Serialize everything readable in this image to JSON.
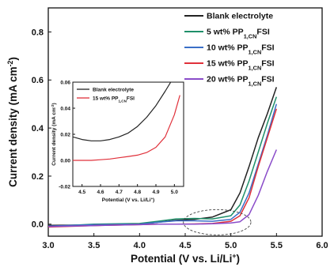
{
  "chart_data": [
    {
      "type": "line",
      "xlabel": "Potential (V vs. Li/Li",
      "xlabel_sup": "+",
      "xlabel_end": ")",
      "ylabel": "Current density (mA cm",
      "ylabel_sup": "-2",
      "ylabel_end": ")",
      "xlim": [
        3.0,
        6.0
      ],
      "ylim": [
        -0.05,
        0.9
      ],
      "xticks": [
        3.0,
        3.5,
        4.0,
        4.5,
        5.0,
        5.5,
        6.0
      ],
      "xtick_labels": [
        "3.0",
        "3.5",
        "4.0",
        "4.5",
        "5.0",
        "5.5",
        "6.0"
      ],
      "yticks": [
        0.0,
        0.2,
        0.4,
        0.6,
        0.8
      ],
      "ytick_labels": [
        "0.0",
        "0.2",
        "0.4",
        "0.6",
        "0.8"
      ],
      "legend_position": "top-right",
      "series": [
        {
          "name_main": "Blank electrolyte",
          "name_sub": "",
          "name_end": "",
          "color": "#222222",
          "x": [
            3.0,
            3.5,
            4.0,
            4.2,
            4.4,
            4.6,
            4.8,
            5.0,
            5.1,
            5.2,
            5.3,
            5.4,
            5.5
          ],
          "y": [
            -0.005,
            -0.003,
            0.0,
            0.008,
            0.016,
            0.02,
            0.03,
            0.06,
            0.13,
            0.24,
            0.36,
            0.46,
            0.57
          ]
        },
        {
          "name_main": "5 wt% PP",
          "name_sub": "1,CN",
          "name_end": "FSI",
          "color": "#1f8f6a",
          "x": [
            3.0,
            3.5,
            4.0,
            4.2,
            4.4,
            4.6,
            4.8,
            5.0,
            5.1,
            5.2,
            5.3,
            5.4,
            5.5
          ],
          "y": [
            -0.01,
            0.0,
            0.003,
            0.012,
            0.022,
            0.024,
            0.022,
            0.035,
            0.08,
            0.18,
            0.3,
            0.42,
            0.53
          ]
        },
        {
          "name_main": "10 wt% PP",
          "name_sub": "1,CN",
          "name_end": "FSI",
          "color": "#3a6fc7",
          "x": [
            3.0,
            3.5,
            4.0,
            4.2,
            4.4,
            4.6,
            4.8,
            5.0,
            5.1,
            5.2,
            5.3,
            5.4,
            5.5
          ],
          "y": [
            -0.008,
            -0.002,
            0.0,
            0.008,
            0.014,
            0.014,
            0.012,
            0.02,
            0.05,
            0.13,
            0.25,
            0.37,
            0.5
          ]
        },
        {
          "name_main": "15 wt% PP",
          "name_sub": "1,CN",
          "name_end": "FSI",
          "color": "#e0303a",
          "x": [
            3.0,
            3.5,
            4.0,
            4.2,
            4.4,
            4.6,
            4.8,
            5.0,
            5.1,
            5.2,
            5.3,
            5.4,
            5.5
          ],
          "y": [
            -0.012,
            -0.006,
            -0.002,
            0.0,
            0.0,
            0.001,
            0.003,
            0.012,
            0.035,
            0.11,
            0.24,
            0.36,
            0.48
          ]
        },
        {
          "name_main": "20 wt% PP",
          "name_sub": "1,CN",
          "name_end": "FSI",
          "color": "#8a4cc9",
          "x": [
            3.0,
            3.5,
            4.0,
            4.2,
            4.4,
            4.6,
            4.8,
            5.0,
            5.1,
            5.2,
            5.3,
            5.4,
            5.5
          ],
          "y": [
            -0.01,
            -0.006,
            -0.002,
            0.0,
            0.0,
            0.0,
            0.002,
            0.005,
            0.01,
            0.04,
            0.12,
            0.22,
            0.31
          ]
        }
      ]
    },
    {
      "type": "line",
      "xlabel": "Potential (V vs. Li/Li",
      "xlabel_sup": "+",
      "xlabel_end": ")",
      "ylabel": "Current density (mA cm",
      "ylabel_sup": "-2",
      "ylabel_end": ")",
      "xlim": [
        4.45,
        5.05
      ],
      "ylim": [
        -0.02,
        0.06
      ],
      "xticks": [
        4.5,
        4.6,
        4.7,
        4.8,
        4.9,
        5.0
      ],
      "xtick_labels": [
        "4.5",
        "4.6",
        "4.7",
        "4.8",
        "4.9",
        "5.0"
      ],
      "yticks": [
        -0.02,
        0.0,
        0.02,
        0.04,
        0.06
      ],
      "ytick_labels": [
        "-0.02",
        "0.00",
        "0.02",
        "0.04",
        "0.06"
      ],
      "legend_position": "top-left",
      "series": [
        {
          "name_main": "Blank electrolyte",
          "name_sub": "",
          "name_end": "",
          "color": "#222222",
          "x": [
            4.45,
            4.5,
            4.55,
            4.6,
            4.65,
            4.7,
            4.75,
            4.8,
            4.85,
            4.9,
            4.95,
            4.98
          ],
          "y": [
            0.018,
            0.016,
            0.015,
            0.015,
            0.016,
            0.018,
            0.021,
            0.026,
            0.033,
            0.042,
            0.053,
            0.06
          ]
        },
        {
          "name_main": "15 wt% PP",
          "name_sub": "1,CN",
          "name_end": "FSI",
          "color": "#e0303a",
          "x": [
            4.45,
            4.5,
            4.55,
            4.6,
            4.65,
            4.7,
            4.75,
            4.8,
            4.85,
            4.9,
            4.95,
            5.0,
            5.03
          ],
          "y": [
            0.0,
            0.0,
            0.0,
            0.0005,
            0.001,
            0.002,
            0.003,
            0.004,
            0.006,
            0.01,
            0.018,
            0.035,
            0.05
          ]
        }
      ]
    }
  ]
}
